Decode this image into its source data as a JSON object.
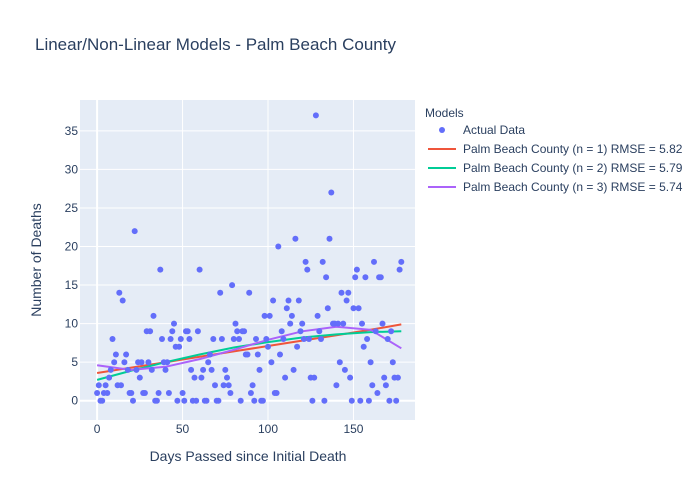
{
  "chart_data": {
    "type": "scatter",
    "title": "Linear/Non-Linear Models - Palm Beach County",
    "xlabel": "Days Passed since Initial Death",
    "ylabel": "Number of Deaths",
    "xlim": [
      -10,
      186
    ],
    "ylim": [
      -2.5,
      39
    ],
    "x_ticks": [
      0,
      50,
      100,
      150
    ],
    "y_ticks": [
      0,
      5,
      10,
      15,
      20,
      25,
      30,
      35
    ],
    "grid": true,
    "legend_placement": "right",
    "legend_title": "Models",
    "scatter": {
      "name": "Actual Data",
      "color": "#636efa",
      "x": [
        0,
        1,
        2,
        3,
        4,
        5,
        6,
        7,
        8,
        9,
        10,
        11,
        12,
        13,
        14,
        15,
        16,
        17,
        18,
        19,
        20,
        21,
        22,
        23,
        24,
        25,
        26,
        27,
        28,
        29,
        30,
        31,
        32,
        33,
        34,
        35,
        36,
        37,
        38,
        39,
        40,
        41,
        42,
        43,
        44,
        45,
        46,
        47,
        48,
        49,
        50,
        51,
        52,
        53,
        54,
        55,
        56,
        57,
        58,
        59,
        60,
        61,
        62,
        63,
        64,
        65,
        66,
        67,
        68,
        69,
        70,
        71,
        72,
        73,
        74,
        75,
        76,
        77,
        78,
        79,
        80,
        81,
        82,
        83,
        84,
        85,
        86,
        87,
        88,
        89,
        90,
        91,
        92,
        93,
        94,
        95,
        96,
        97,
        98,
        99,
        100,
        101,
        102,
        103,
        104,
        105,
        106,
        107,
        108,
        109,
        110,
        111,
        112,
        113,
        114,
        115,
        116,
        117,
        118,
        119,
        120,
        121,
        122,
        123,
        124,
        125,
        126,
        127,
        128,
        129,
        130,
        131,
        132,
        133,
        134,
        135,
        136,
        137,
        138,
        139,
        140,
        141,
        142,
        143,
        144,
        145,
        146,
        147,
        148,
        149,
        150,
        151,
        152,
        153,
        154,
        155,
        156,
        157,
        158,
        159,
        160,
        161,
        162,
        163,
        164,
        165,
        166,
        167,
        168,
        169,
        170,
        171,
        172,
        173,
        174,
        175,
        176,
        177,
        178
      ],
      "y": [
        1,
        2,
        0,
        0,
        1,
        2,
        1,
        3,
        4,
        8,
        5,
        6,
        2,
        14,
        2,
        13,
        5,
        6,
        4,
        1,
        1,
        0,
        22,
        4,
        5,
        3,
        5,
        1,
        1,
        9,
        5,
        9,
        4,
        11,
        0,
        0,
        1,
        17,
        8,
        5,
        4,
        5,
        1,
        8,
        9,
        10,
        7,
        0,
        7,
        8,
        1,
        0,
        9,
        9,
        8,
        4,
        0,
        3,
        0,
        9,
        17,
        3,
        4,
        0,
        0,
        5,
        6,
        4,
        8,
        2,
        0,
        0,
        14,
        8,
        2,
        4,
        3,
        2,
        1,
        15,
        8,
        10,
        9,
        8,
        0,
        9,
        9,
        6,
        6,
        14,
        1,
        2,
        0,
        8,
        6,
        4,
        0,
        0,
        11,
        8,
        7,
        11,
        5,
        13,
        1,
        1,
        20,
        6,
        9,
        8,
        3,
        12,
        13,
        10,
        11,
        4,
        21,
        7,
        13,
        9,
        10,
        8,
        18,
        17,
        8,
        3,
        0,
        3,
        37,
        11,
        9,
        8,
        18,
        0,
        16,
        12,
        21,
        27,
        10,
        10,
        2,
        10,
        5,
        14,
        10,
        4,
        13,
        14,
        3,
        0,
        12,
        16,
        17,
        12,
        0,
        10,
        7,
        16,
        8,
        0,
        5,
        2,
        18,
        9,
        1,
        16,
        16,
        10,
        3,
        2,
        8,
        0,
        9,
        5,
        3,
        0,
        3,
        17,
        18
      ]
    },
    "series": [
      {
        "name": "Palm Beach County (n = 1) RMSE = 5.82",
        "color": "#ef553b",
        "x": [
          0,
          20,
          40,
          60,
          80,
          100,
          120,
          140,
          160,
          178
        ],
        "y": [
          3.6,
          4.3,
          5.0,
          5.7,
          6.4,
          7.1,
          7.8,
          8.5,
          9.2,
          9.9
        ]
      },
      {
        "name": "Palm Beach County (n = 2) RMSE = 5.79",
        "color": "#00cc96",
        "x": [
          0,
          20,
          40,
          60,
          80,
          100,
          120,
          140,
          160,
          178
        ],
        "y": [
          2.7,
          3.9,
          5.0,
          6.0,
          6.9,
          7.6,
          8.2,
          8.6,
          8.9,
          9.0
        ]
      },
      {
        "name": "Palm Beach County (n = 3) RMSE = 5.74",
        "color": "#ab63fa",
        "x": [
          0,
          20,
          40,
          60,
          80,
          100,
          120,
          140,
          160,
          178
        ],
        "y": [
          4.6,
          4.0,
          4.4,
          5.4,
          6.6,
          7.9,
          9.0,
          9.6,
          9.2,
          6.8
        ]
      }
    ]
  }
}
